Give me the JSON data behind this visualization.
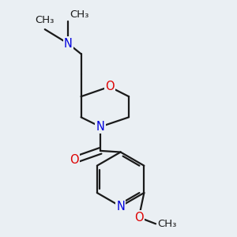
{
  "bg_color": "#eaeff3",
  "bond_color": "#1a1a1a",
  "N_color": "#0000dd",
  "O_color": "#dd0000",
  "font_size": 10.5,
  "label_font_size": 9.5,
  "linewidth": 1.6,
  "figsize": [
    3.0,
    3.0
  ],
  "dpi": 100,
  "xlim": [
    0.05,
    0.95
  ],
  "ylim": [
    0.05,
    0.95
  ]
}
